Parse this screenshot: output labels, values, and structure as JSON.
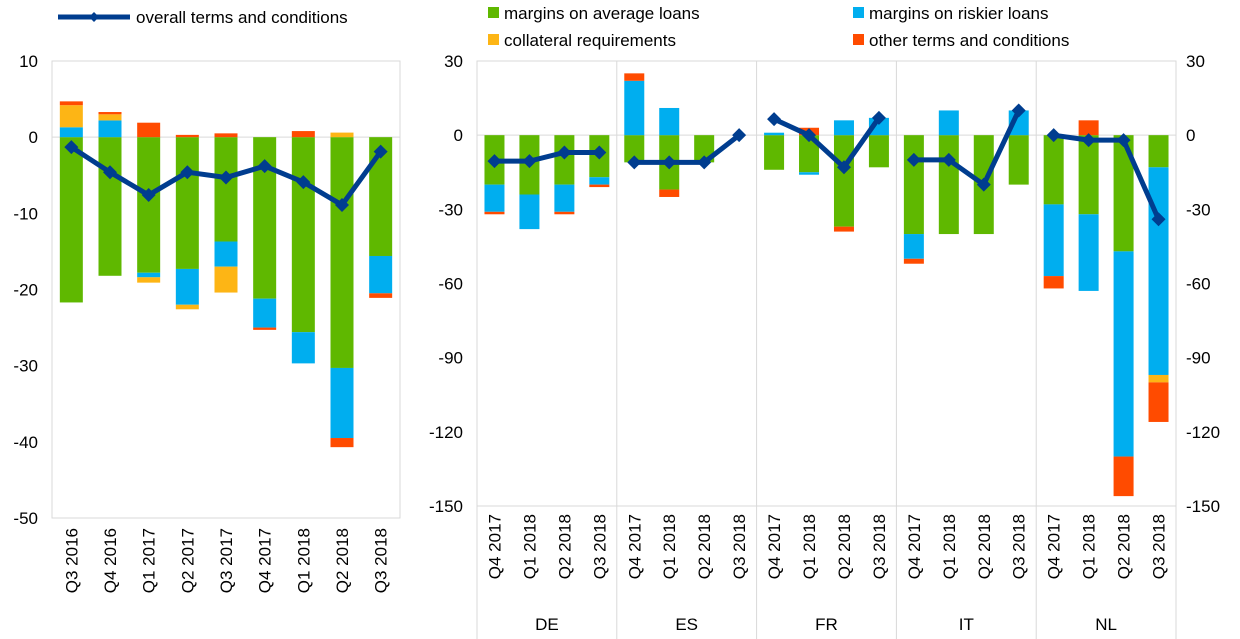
{
  "colors": {
    "margins_avg": "#5fb800",
    "margins_risk": "#00aeef",
    "collateral": "#fdb515",
    "other": "#ff4b00",
    "overall": "#003d8f",
    "grid": "#d9d9d9",
    "axis": "#7f7f7f"
  },
  "legend": [
    {
      "key": "overall",
      "label": "overall terms and conditions"
    },
    {
      "key": "margins_avg",
      "label": "margins on average loans"
    },
    {
      "key": "margins_risk",
      "label": "margins on riskier loans"
    },
    {
      "key": "collateral",
      "label": "collateral requirements"
    },
    {
      "key": "other",
      "label": "other terms and conditions"
    }
  ],
  "chart_data": [
    {
      "type": "bar",
      "stacked": true,
      "overlay_line": "overall terms and conditions",
      "categories": [
        "Q3 2016",
        "Q4 2016",
        "Q1 2017",
        "Q2 2017",
        "Q3 2017",
        "Q4 2017",
        "Q1 2018",
        "Q2 2018",
        "Q3 2018"
      ],
      "ylim": [
        -50,
        10
      ],
      "yticks": [
        10,
        0,
        -10,
        -20,
        -30,
        -40,
        -50
      ],
      "ytick_labels": [
        "10",
        "0",
        "-10",
        "-20",
        "-30",
        "-40",
        "-50"
      ],
      "series": [
        {
          "name": "margins on average loans",
          "key": "margins_avg",
          "values": [
            -21.7,
            -18.2,
            -17.8,
            -17.3,
            -13.7,
            -21.2,
            -25.6,
            -30.3,
            -15.6
          ]
        },
        {
          "name": "margins on riskier loans",
          "key": "margins_risk",
          "values": [
            1.3,
            2.2,
            -0.6,
            -4.7,
            -3.3,
            -3.8,
            -4.1,
            -9.2,
            -4.9
          ]
        },
        {
          "name": "collateral requirements",
          "key": "collateral",
          "values": [
            2.9,
            0.8,
            -0.7,
            -0.6,
            -3.4,
            0,
            0,
            0.6,
            0
          ]
        },
        {
          "name": "other terms and conditions",
          "key": "other",
          "values": [
            0.5,
            0.3,
            1.9,
            0.3,
            0.5,
            -0.3,
            0.8,
            -1.2,
            -0.6
          ]
        },
        {
          "name": "overall terms and conditions",
          "key": "overall",
          "type": "line",
          "values": [
            -1.3,
            -4.6,
            -7.6,
            -4.6,
            -5.3,
            -3.8,
            -5.9,
            -8.9,
            -1.9
          ]
        }
      ]
    },
    {
      "type": "bar",
      "stacked": true,
      "overlay_line": "overall terms and conditions",
      "groups": [
        "DE",
        "ES",
        "FR",
        "IT",
        "NL"
      ],
      "categories": [
        "Q4 2017",
        "Q1 2018",
        "Q2 2018",
        "Q3 2018"
      ],
      "ylim": [
        -150,
        30
      ],
      "yticks": [
        30,
        0,
        -30,
        -60,
        -90,
        -120,
        -150
      ],
      "ytick_labels": [
        "30",
        "0",
        "-30",
        "-60",
        "-90",
        "-120",
        "-150"
      ],
      "data": [
        {
          "group": "DE",
          "margins_avg": [
            -20,
            -24,
            -20,
            -17
          ],
          "margins_risk": [
            -11,
            -14,
            -11,
            -3
          ],
          "collateral": [
            0,
            0,
            0,
            0
          ],
          "other": [
            -1,
            0,
            -1,
            -1
          ],
          "overall": [
            -10.5,
            -10.5,
            -7,
            -7
          ]
        },
        {
          "group": "ES",
          "margins_avg": [
            -11,
            -22,
            -11,
            0
          ],
          "margins_risk": [
            22,
            11,
            0,
            0
          ],
          "collateral": [
            0,
            0,
            0,
            0
          ],
          "other": [
            3,
            -3,
            0,
            0
          ],
          "overall": [
            -11,
            -11,
            -11,
            0
          ]
        },
        {
          "group": "FR",
          "margins_avg": [
            -14,
            -15,
            -37,
            -13
          ],
          "margins_risk": [
            1,
            -1,
            6,
            7
          ],
          "collateral": [
            0,
            0,
            0,
            0
          ],
          "other": [
            0,
            3,
            -2,
            0
          ],
          "overall": [
            6.5,
            0,
            -13,
            7
          ]
        },
        {
          "group": "IT",
          "margins_avg": [
            -40,
            -40,
            -40,
            -20
          ],
          "margins_risk": [
            -10,
            10,
            0,
            10
          ],
          "collateral": [
            0,
            0,
            0,
            0
          ],
          "other": [
            -2,
            0,
            0,
            0
          ],
          "overall": [
            -10,
            -10,
            -20,
            10
          ]
        },
        {
          "group": "NL",
          "margins_avg": [
            -28,
            -32,
            -47,
            -13
          ],
          "margins_risk": [
            -29,
            -31,
            -83,
            -84
          ],
          "collateral": [
            0,
            0,
            0,
            -3
          ],
          "other": [
            -5,
            6,
            -16,
            -16
          ],
          "overall": [
            0,
            -2,
            -2,
            -34
          ]
        }
      ]
    }
  ]
}
